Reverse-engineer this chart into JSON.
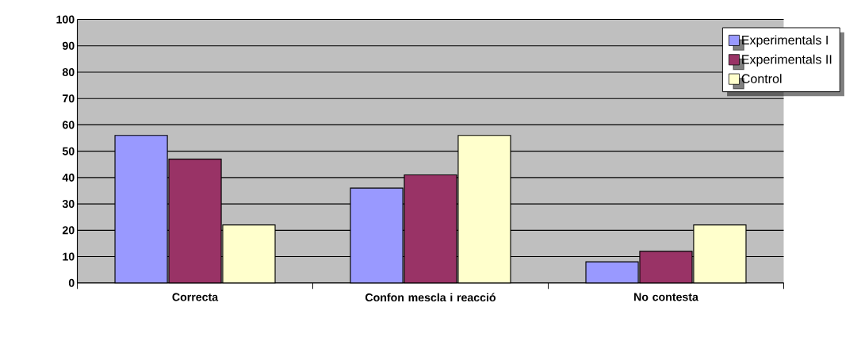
{
  "chart_data": {
    "type": "bar",
    "categories": [
      "Correcta",
      "Confon mescla i reacció",
      "No contesta"
    ],
    "series": [
      {
        "name": "Experimentals I",
        "color": "#9999ff",
        "values": [
          56,
          36,
          8
        ]
      },
      {
        "name": "Experimentals II",
        "color": "#993366",
        "values": [
          47,
          41,
          12
        ]
      },
      {
        "name": "Control",
        "color": "#ffffcc",
        "values": [
          22,
          56,
          22
        ]
      }
    ],
    "ylim": [
      0,
      100
    ],
    "yticks": [
      0,
      10,
      20,
      30,
      40,
      50,
      60,
      70,
      80,
      90,
      100
    ],
    "grid": "y",
    "legend": "top right"
  }
}
